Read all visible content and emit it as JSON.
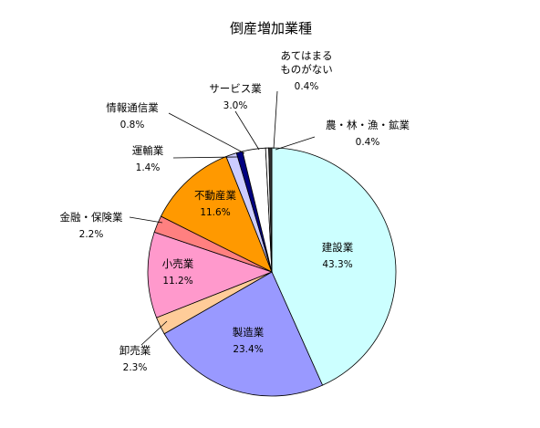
{
  "chart_data": {
    "type": "pie",
    "title": "倒産増加業種",
    "start_angle_deg": 0,
    "direction": "clockwise",
    "slices": [
      {
        "label": "建設業",
        "value": 43.3,
        "value_label": "43.3%",
        "color": "#ccffff"
      },
      {
        "label": "製造業",
        "value": 23.4,
        "value_label": "23.4%",
        "color": "#9999ff"
      },
      {
        "label": "卸売業",
        "value": 2.3,
        "value_label": "2.3%",
        "color": "#ffcc99"
      },
      {
        "label": "小売業",
        "value": 11.2,
        "value_label": "11.2%",
        "color": "#ff99cc"
      },
      {
        "label": "金融・保険業",
        "value": 2.2,
        "value_label": "2.2%",
        "color": "#ff8080"
      },
      {
        "label": "不動産業",
        "value": 11.6,
        "value_label": "11.6%",
        "color": "#ff9900"
      },
      {
        "label": "運輸業",
        "value": 1.4,
        "value_label": "1.4%",
        "color": "#ccccff"
      },
      {
        "label": "情報通信業",
        "value": 0.8,
        "value_label": "0.8%",
        "color": "#000080"
      },
      {
        "label": "サービス業",
        "value": 3.0,
        "value_label": "3.0%",
        "color": "#ffffff"
      },
      {
        "label": "あてはまるものがない",
        "label_lines": [
          "あてはまる",
          "ものがない"
        ],
        "value": 0.4,
        "value_label": "0.4%",
        "color": "#ffffff"
      },
      {
        "label": "農・林・漁・鉱業",
        "value": 0.4,
        "value_label": "0.4%",
        "color": "#333333"
      }
    ]
  }
}
